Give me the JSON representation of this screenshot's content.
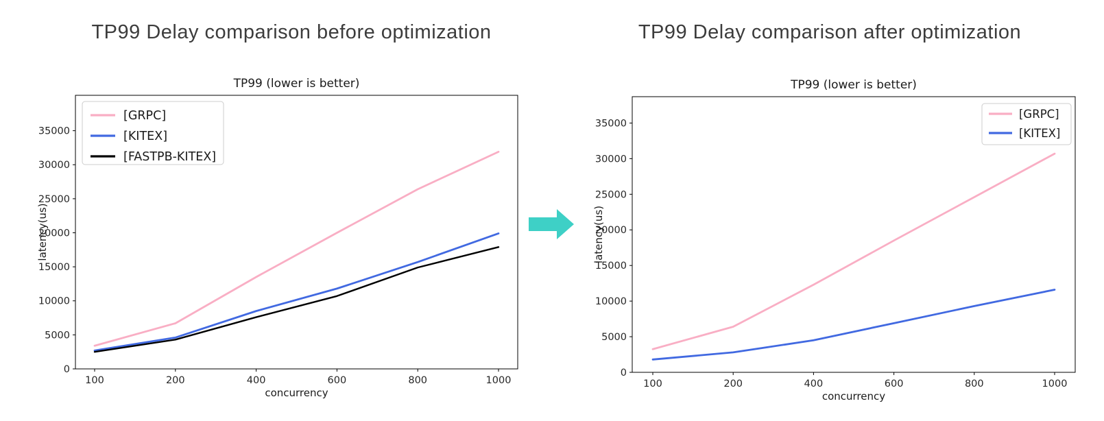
{
  "page": {
    "background": "#ffffff"
  },
  "headings": {
    "before": "TP99 Delay comparison before optimization",
    "after": "TP99 Delay comparison after optimization"
  },
  "arrow": {
    "icon": "arrow-right-icon",
    "color": "#3ed0c6"
  },
  "chart_data": [
    {
      "type": "line",
      "title": "TP99 (lower is better)",
      "xlabel": "concurrency",
      "ylabel": "latency(us)",
      "categories": [
        "100",
        "200",
        "400",
        "600",
        "800",
        "1000"
      ],
      "yticks": [
        0,
        5000,
        10000,
        15000,
        20000,
        25000,
        30000,
        35000
      ],
      "ylim": [
        0,
        40200
      ],
      "grid": false,
      "legend_position": "upper left",
      "series": [
        {
          "name": "[GRPC]",
          "color": "#f9aec4",
          "values": [
            3400,
            6700,
            13500,
            20000,
            26400,
            31900
          ]
        },
        {
          "name": "[KITEX]",
          "color": "#4169e1",
          "values": [
            2700,
            4600,
            8500,
            11800,
            15700,
            19900
          ]
        },
        {
          "name": "[FASTPB-KITEX]",
          "color": "#000000",
          "values": [
            2500,
            4300,
            7600,
            10700,
            14900,
            17900
          ]
        }
      ]
    },
    {
      "type": "line",
      "title": "TP99 (lower is better)",
      "xlabel": "concurrency",
      "ylabel": "latency(us)",
      "categories": [
        "100",
        "200",
        "400",
        "600",
        "800",
        "1000"
      ],
      "yticks": [
        0,
        5000,
        10000,
        15000,
        20000,
        25000,
        30000,
        35000
      ],
      "ylim": [
        0,
        38700
      ],
      "grid": false,
      "legend_position": "upper right",
      "series": [
        {
          "name": "[GRPC]",
          "color": "#f9aec4",
          "values": [
            3250,
            6400,
            12300,
            18500,
            24600,
            30700
          ]
        },
        {
          "name": "[KITEX]",
          "color": "#4169e1",
          "values": [
            1800,
            2800,
            4500,
            6900,
            9300,
            11600
          ]
        }
      ]
    }
  ]
}
